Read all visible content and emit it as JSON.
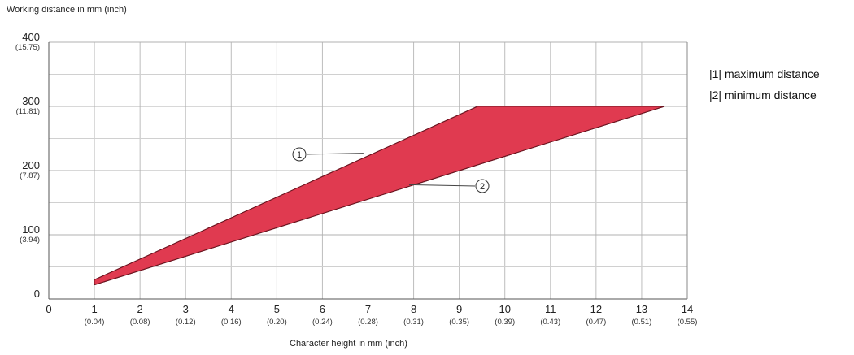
{
  "chart_data": {
    "type": "area",
    "title": "",
    "ylabel": "Working distance in mm (inch)",
    "xlabel": "Character height in mm (inch)",
    "xlim": [
      0,
      14
    ],
    "ylim": [
      0,
      400
    ],
    "grid": true,
    "x_ticks": [
      {
        "value": 0,
        "label": "0",
        "sub": ""
      },
      {
        "value": 1,
        "label": "1",
        "sub": "(0.04)"
      },
      {
        "value": 2,
        "label": "2",
        "sub": "(0.08)"
      },
      {
        "value": 3,
        "label": "3",
        "sub": "(0.12)"
      },
      {
        "value": 4,
        "label": "4",
        "sub": "(0.16)"
      },
      {
        "value": 5,
        "label": "5",
        "sub": "(0.20)"
      },
      {
        "value": 6,
        "label": "6",
        "sub": "(0.24)"
      },
      {
        "value": 7,
        "label": "7",
        "sub": "(0.28)"
      },
      {
        "value": 8,
        "label": "8",
        "sub": "(0.31)"
      },
      {
        "value": 9,
        "label": "9",
        "sub": "(0.35)"
      },
      {
        "value": 10,
        "label": "10",
        "sub": "(0.39)"
      },
      {
        "value": 11,
        "label": "11",
        "sub": "(0.43)"
      },
      {
        "value": 12,
        "label": "12",
        "sub": "(0.47)"
      },
      {
        "value": 13,
        "label": "13",
        "sub": "(0.51)"
      },
      {
        "value": 14,
        "label": "14",
        "sub": "(0.55)"
      }
    ],
    "y_ticks": [
      {
        "value": 0,
        "label": "0",
        "sub": ""
      },
      {
        "value": 100,
        "label": "100",
        "sub": "(3.94)"
      },
      {
        "value": 200,
        "label": "200",
        "sub": "(7.87)"
      },
      {
        "value": 300,
        "label": "300",
        "sub": "(11.81)"
      },
      {
        "value": 400,
        "label": "400",
        "sub": "(15.75)"
      }
    ],
    "series": [
      {
        "name": "maximum distance",
        "marker": "1",
        "points": [
          [
            1,
            30
          ],
          [
            9.4,
            300
          ],
          [
            13.5,
            300
          ]
        ]
      },
      {
        "name": "minimum distance",
        "marker": "2",
        "points": [
          [
            1,
            22
          ],
          [
            13.5,
            300
          ]
        ]
      }
    ],
    "fill_color": "#e03a50",
    "annotations": [
      {
        "marker": "1",
        "text": "1",
        "x_at": 6.9,
        "y_at": 227
      },
      {
        "marker": "2",
        "text": "2",
        "x_at": 7.9,
        "y_at": 178
      }
    ]
  },
  "legend": [
    {
      "text": "|1| maximum distance"
    },
    {
      "text": "|2| minimum distance"
    }
  ]
}
